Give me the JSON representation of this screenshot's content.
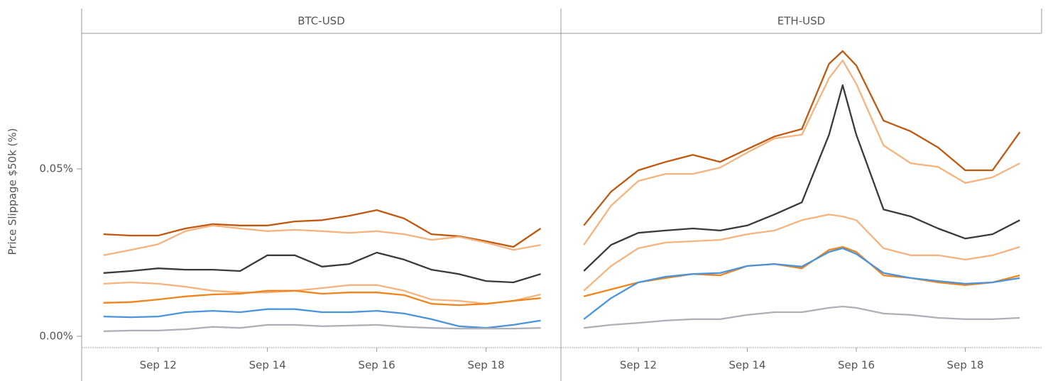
{
  "chart_data": [
    {
      "type": "line",
      "title": "BTC-USD",
      "ylabel": "Price Slippage $50k (%)",
      "x": [
        11,
        11.5,
        12,
        12.5,
        13,
        13.5,
        14,
        14.5,
        15,
        15.5,
        16,
        16.5,
        17,
        17.5,
        18,
        18.5,
        19
      ],
      "xlim": [
        10.6,
        19.37
      ],
      "xticks": [
        {
          "value": 12,
          "label": "Sep 12"
        },
        {
          "value": 14,
          "label": "Sep 14"
        },
        {
          "value": 16,
          "label": "Sep 16"
        },
        {
          "value": 18,
          "label": "Sep 18"
        }
      ],
      "ylim": [
        -0.0034,
        0.0905
      ],
      "yticks": [
        {
          "value": 0,
          "label": "0.00%"
        },
        {
          "value": 0.05,
          "label": "0.05%"
        }
      ],
      "series": [
        {
          "color": "#c0580f",
          "values": [
            0.0305,
            0.0301,
            0.0301,
            0.0322,
            0.0335,
            0.0331,
            0.0331,
            0.0343,
            0.0347,
            0.036,
            0.0377,
            0.0352,
            0.0305,
            0.0299,
            0.0284,
            0.0267,
            0.0322
          ]
        },
        {
          "color": "#f6b37e",
          "values": [
            0.0242,
            0.0258,
            0.0275,
            0.0314,
            0.0331,
            0.0322,
            0.0314,
            0.0318,
            0.0314,
            0.0309,
            0.0314,
            0.0305,
            0.0288,
            0.0297,
            0.028,
            0.0258,
            0.0273
          ]
        },
        {
          "color": "#3a3a3a",
          "values": [
            0.0189,
            0.0195,
            0.0203,
            0.0199,
            0.0199,
            0.0195,
            0.0242,
            0.0242,
            0.0208,
            0.0216,
            0.025,
            0.0229,
            0.0199,
            0.0186,
            0.0165,
            0.0161,
            0.0186
          ]
        },
        {
          "color": "#f6b37e",
          "values": [
            0.0157,
            0.0161,
            0.0157,
            0.0148,
            0.0136,
            0.0131,
            0.0131,
            0.0136,
            0.0144,
            0.0153,
            0.0153,
            0.0136,
            0.011,
            0.0106,
            0.0097,
            0.0106,
            0.0125
          ]
        },
        {
          "color": "#f0851d",
          "values": [
            0.01,
            0.0102,
            0.011,
            0.0119,
            0.0125,
            0.0127,
            0.0136,
            0.0136,
            0.0127,
            0.0131,
            0.0131,
            0.0123,
            0.0097,
            0.0093,
            0.0097,
            0.0106,
            0.0114
          ]
        },
        {
          "color": "#4a94dc",
          "values": [
            0.0059,
            0.0057,
            0.0059,
            0.0072,
            0.0076,
            0.0072,
            0.0081,
            0.0081,
            0.0072,
            0.0072,
            0.0076,
            0.0068,
            0.0051,
            0.003,
            0.0025,
            0.0034,
            0.0047
          ]
        },
        {
          "color": "#aeb0b8",
          "values": [
            0.0015,
            0.0017,
            0.0017,
            0.0021,
            0.0028,
            0.0025,
            0.0034,
            0.0034,
            0.003,
            0.0032,
            0.0034,
            0.0028,
            0.0025,
            0.0023,
            0.0023,
            0.0023,
            0.0025
          ]
        }
      ]
    },
    {
      "type": "line",
      "title": "ETH-USD",
      "x": [
        11,
        11.5,
        12,
        12.5,
        13,
        13.5,
        14,
        14.5,
        15,
        15.5,
        15.75,
        16,
        16.5,
        17,
        17.5,
        18,
        18.5,
        19
      ],
      "xlim": [
        10.58,
        19.4
      ],
      "xticks": [
        {
          "value": 12,
          "label": "Sep 12"
        },
        {
          "value": 14,
          "label": "Sep 14"
        },
        {
          "value": 16,
          "label": "Sep 16"
        },
        {
          "value": 18,
          "label": "Sep 18"
        }
      ],
      "ylim": [
        -0.0034,
        0.0905
      ],
      "series": [
        {
          "color": "#c0580f",
          "values": [
            0.0331,
            0.0432,
            0.0496,
            0.0521,
            0.0542,
            0.0521,
            0.0559,
            0.0597,
            0.0619,
            0.0814,
            0.0852,
            0.0809,
            0.0644,
            0.0612,
            0.0564,
            0.0496,
            0.0496,
            0.061
          ]
        },
        {
          "color": "#f6b37e",
          "values": [
            0.0273,
            0.039,
            0.0464,
            0.0485,
            0.0485,
            0.0504,
            0.0549,
            0.0591,
            0.0602,
            0.0771,
            0.0824,
            0.0754,
            0.057,
            0.0517,
            0.0506,
            0.0458,
            0.0475,
            0.0517
          ]
        },
        {
          "color": "#3a3a3a",
          "values": [
            0.0195,
            0.0273,
            0.0309,
            0.0316,
            0.0322,
            0.0316,
            0.0331,
            0.0364,
            0.04,
            0.0602,
            0.075,
            0.0602,
            0.0379,
            0.0358,
            0.0322,
            0.0292,
            0.0305,
            0.0347
          ]
        },
        {
          "color": "#f6b37e",
          "values": [
            0.0136,
            0.021,
            0.0263,
            0.028,
            0.0284,
            0.0288,
            0.0305,
            0.0316,
            0.0347,
            0.0364,
            0.0358,
            0.0347,
            0.0263,
            0.0242,
            0.0242,
            0.0229,
            0.0242,
            0.0267
          ]
        },
        {
          "color": "#f0851d",
          "values": [
            0.0119,
            0.014,
            0.0161,
            0.0174,
            0.0186,
            0.0182,
            0.021,
            0.0216,
            0.0203,
            0.0258,
            0.0267,
            0.0252,
            0.0182,
            0.0174,
            0.0161,
            0.0153,
            0.0161,
            0.0182
          ]
        },
        {
          "color": "#4a94dc",
          "values": [
            0.0051,
            0.0114,
            0.0161,
            0.0178,
            0.0186,
            0.0189,
            0.021,
            0.0216,
            0.0208,
            0.0252,
            0.0263,
            0.0246,
            0.0189,
            0.0174,
            0.0165,
            0.0157,
            0.0161,
            0.0174
          ]
        },
        {
          "color": "#aeb0b8",
          "values": [
            0.0025,
            0.0034,
            0.004,
            0.0047,
            0.0051,
            0.0051,
            0.0064,
            0.0072,
            0.0072,
            0.0085,
            0.0089,
            0.0085,
            0.0068,
            0.0064,
            0.0055,
            0.0051,
            0.0051,
            0.0055
          ]
        }
      ]
    }
  ]
}
